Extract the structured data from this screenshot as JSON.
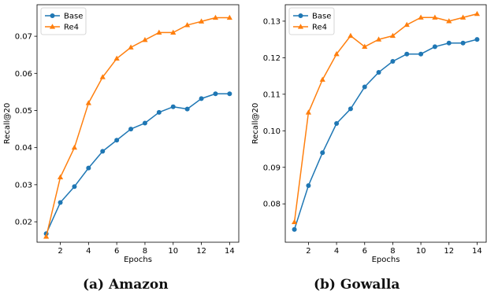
{
  "chart_data": [
    {
      "type": "line",
      "caption": "(a) Amazon",
      "xlabel": "Epochs",
      "ylabel": "Recall@20",
      "x": [
        1,
        2,
        3,
        4,
        5,
        6,
        7,
        8,
        9,
        10,
        11,
        12,
        13,
        14
      ],
      "xticks": [
        2,
        4,
        6,
        8,
        10,
        12,
        14
      ],
      "xlim": [
        0.35,
        14.65
      ],
      "ylim": [
        0.0145,
        0.0785
      ],
      "yticks": [
        0.02,
        0.03,
        0.04,
        0.05,
        0.06,
        0.07
      ],
      "ytick_labels": [
        "0.02",
        "0.03",
        "0.04",
        "0.05",
        "0.06",
        "0.07"
      ],
      "legend_position": "top-left",
      "series": [
        {
          "name": "Base",
          "color": "#1f77b4",
          "marker": "circle",
          "values": [
            0.0168,
            0.0252,
            0.0295,
            0.0345,
            0.039,
            0.042,
            0.045,
            0.0466,
            0.0495,
            0.051,
            0.0504,
            0.0532,
            0.0545,
            0.0545
          ]
        },
        {
          "name": "Re4",
          "color": "#ff7f0e",
          "marker": "triangle",
          "values": [
            0.016,
            0.032,
            0.04,
            0.052,
            0.059,
            0.064,
            0.067,
            0.069,
            0.071,
            0.071,
            0.073,
            0.074,
            0.075,
            0.075
          ]
        }
      ]
    },
    {
      "type": "line",
      "caption": "(b) Gowalla",
      "xlabel": "Epochs",
      "ylabel": "Recall@20",
      "x": [
        1,
        2,
        3,
        4,
        5,
        6,
        7,
        8,
        9,
        10,
        11,
        12,
        13,
        14
      ],
      "xticks": [
        2,
        4,
        6,
        8,
        10,
        12,
        14
      ],
      "xlim": [
        0.35,
        14.65
      ],
      "ylim": [
        0.0695,
        0.1345
      ],
      "yticks": [
        0.08,
        0.09,
        0.1,
        0.11,
        0.12,
        0.13
      ],
      "ytick_labels": [
        "0.08",
        "0.09",
        "0.10",
        "0.11",
        "0.12",
        "0.13"
      ],
      "legend_position": "top-left",
      "series": [
        {
          "name": "Base",
          "color": "#1f77b4",
          "marker": "circle",
          "values": [
            0.073,
            0.085,
            0.094,
            0.102,
            0.106,
            0.112,
            0.116,
            0.119,
            0.121,
            0.121,
            0.123,
            0.124,
            0.124,
            0.125
          ]
        },
        {
          "name": "Re4",
          "color": "#ff7f0e",
          "marker": "triangle",
          "values": [
            0.075,
            0.105,
            0.114,
            0.121,
            0.126,
            0.123,
            0.125,
            0.126,
            0.129,
            0.131,
            0.131,
            0.13,
            0.131,
            0.132
          ]
        }
      ]
    }
  ]
}
